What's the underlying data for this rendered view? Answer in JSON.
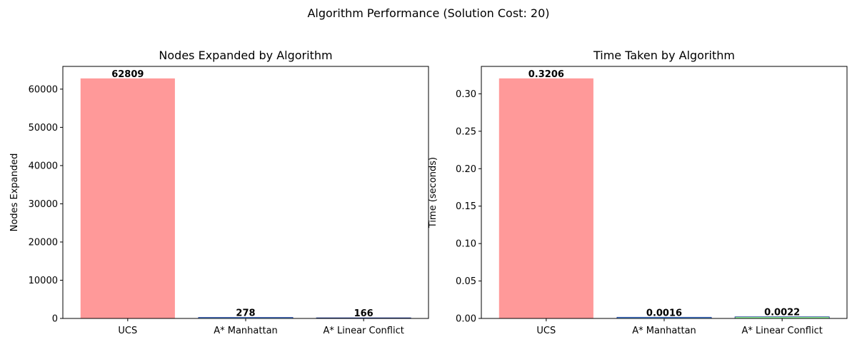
{
  "figure": {
    "suptitle": "Algorithm Performance (Solution Cost: 20)"
  },
  "chart_data": [
    {
      "type": "bar",
      "title": "Nodes Expanded by Algorithm",
      "xlabel": "",
      "ylabel": "Nodes Expanded",
      "categories": [
        "UCS",
        "A* Manhattan",
        "A* Linear Conflict"
      ],
      "values": [
        62809,
        278,
        166
      ],
      "value_labels": [
        "62809",
        "278",
        "166"
      ],
      "ylim": [
        0,
        65950
      ],
      "yticks": [
        0,
        10000,
        20000,
        30000,
        40000,
        50000,
        60000
      ],
      "ytick_labels": [
        "0",
        "10000",
        "20000",
        "30000",
        "40000",
        "50000",
        "60000"
      ],
      "colors": [
        "#ff9999",
        "#66b3ff",
        "#99ff99"
      ],
      "edge_color": "#1f3a93",
      "grid": false,
      "legend": "none"
    },
    {
      "type": "bar",
      "title": "Time Taken by Algorithm",
      "xlabel": "",
      "ylabel": "Time (seconds)",
      "categories": [
        "UCS",
        "A* Manhattan",
        "A* Linear Conflict"
      ],
      "values": [
        0.3206,
        0.0016,
        0.0022
      ],
      "value_labels": [
        "0.3206",
        "0.0016",
        "0.0022"
      ],
      "ylim": [
        0,
        0.3366
      ],
      "yticks": [
        0,
        0.05,
        0.1,
        0.15,
        0.2,
        0.25,
        0.3
      ],
      "ytick_labels": [
        "0.00",
        "0.05",
        "0.10",
        "0.15",
        "0.20",
        "0.25",
        "0.30"
      ],
      "colors": [
        "#ff9999",
        "#66b3ff",
        "#99ff99"
      ],
      "edge_color": "#1f3a93",
      "grid": false,
      "legend": "none"
    }
  ]
}
